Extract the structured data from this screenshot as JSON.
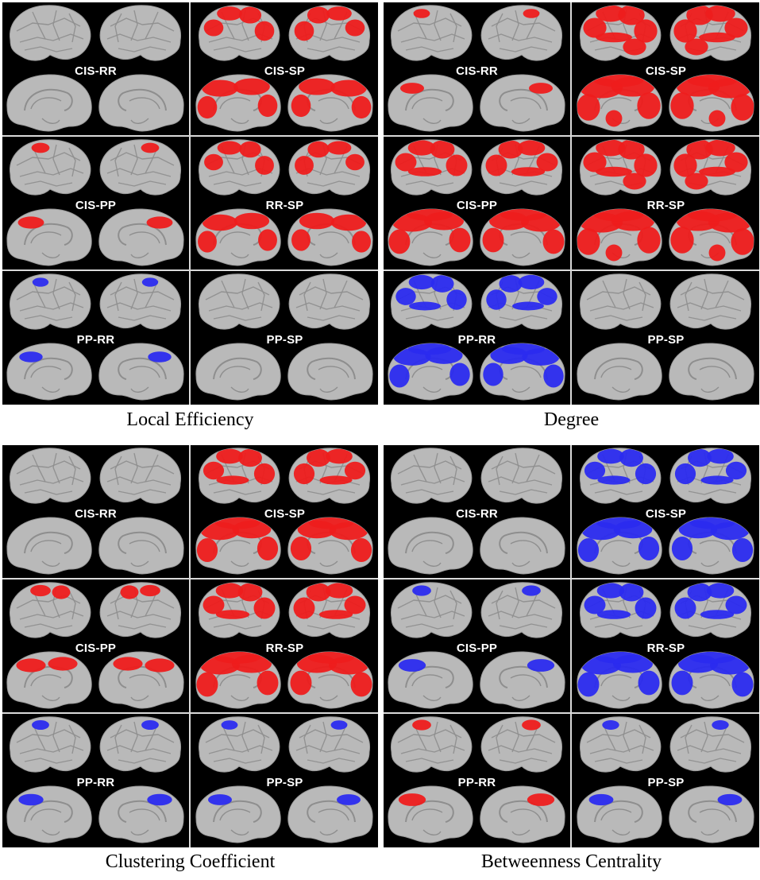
{
  "panels": [
    {
      "caption": "Local Efficiency",
      "cells": [
        {
          "label": "CIS-RR",
          "color": "none",
          "amount": 0
        },
        {
          "label": "CIS-SP",
          "color": "red",
          "amount": 0.6
        },
        {
          "label": "CIS-PP",
          "color": "red",
          "amount": 0.15
        },
        {
          "label": "RR-SP",
          "color": "red",
          "amount": 0.55
        },
        {
          "label": "PP-RR",
          "color": "blue",
          "amount": 0.03
        },
        {
          "label": "PP-SP",
          "color": "none",
          "amount": 0
        }
      ]
    },
    {
      "caption": "Degree",
      "cells": [
        {
          "label": "CIS-RR",
          "color": "red",
          "amount": 0.05
        },
        {
          "label": "CIS-SP",
          "color": "red",
          "amount": 0.9
        },
        {
          "label": "CIS-PP",
          "color": "red",
          "amount": 0.75
        },
        {
          "label": "RR-SP",
          "color": "red",
          "amount": 0.9
        },
        {
          "label": "PP-RR",
          "color": "blue",
          "amount": 0.65
        },
        {
          "label": "PP-SP",
          "color": "none",
          "amount": 0
        }
      ]
    },
    {
      "caption": "Clustering Coefficient",
      "cells": [
        {
          "label": "CIS-RR",
          "color": "none",
          "amount": 0
        },
        {
          "label": "CIS-SP",
          "color": "red",
          "amount": 0.7
        },
        {
          "label": "CIS-PP",
          "color": "red",
          "amount": 0.3
        },
        {
          "label": "RR-SP",
          "color": "red",
          "amount": 0.75
        },
        {
          "label": "PP-RR",
          "color": "blue",
          "amount": 0.1
        },
        {
          "label": "PP-SP",
          "color": "blue",
          "amount": 0.05
        }
      ]
    },
    {
      "caption": "Betweenness Centrality",
      "cells": [
        {
          "label": "CIS-RR",
          "color": "none",
          "amount": 0
        },
        {
          "label": "CIS-SP",
          "color": "blue",
          "amount": 0.7
        },
        {
          "label": "CIS-PP",
          "color": "blue",
          "amount": 0.2
        },
        {
          "label": "RR-SP",
          "color": "blue",
          "amount": 0.75
        },
        {
          "label": "PP-RR",
          "color": "red",
          "amount": 0.2
        },
        {
          "label": "PP-SP",
          "color": "blue",
          "amount": 0.08
        }
      ]
    }
  ],
  "colors": {
    "background": "#000000",
    "brain": "#b9b9b9",
    "brain_shadow": "#8e8e8e",
    "red": "#ee1c1c",
    "blue": "#2b2bef",
    "divider": "#d9d9d9"
  }
}
